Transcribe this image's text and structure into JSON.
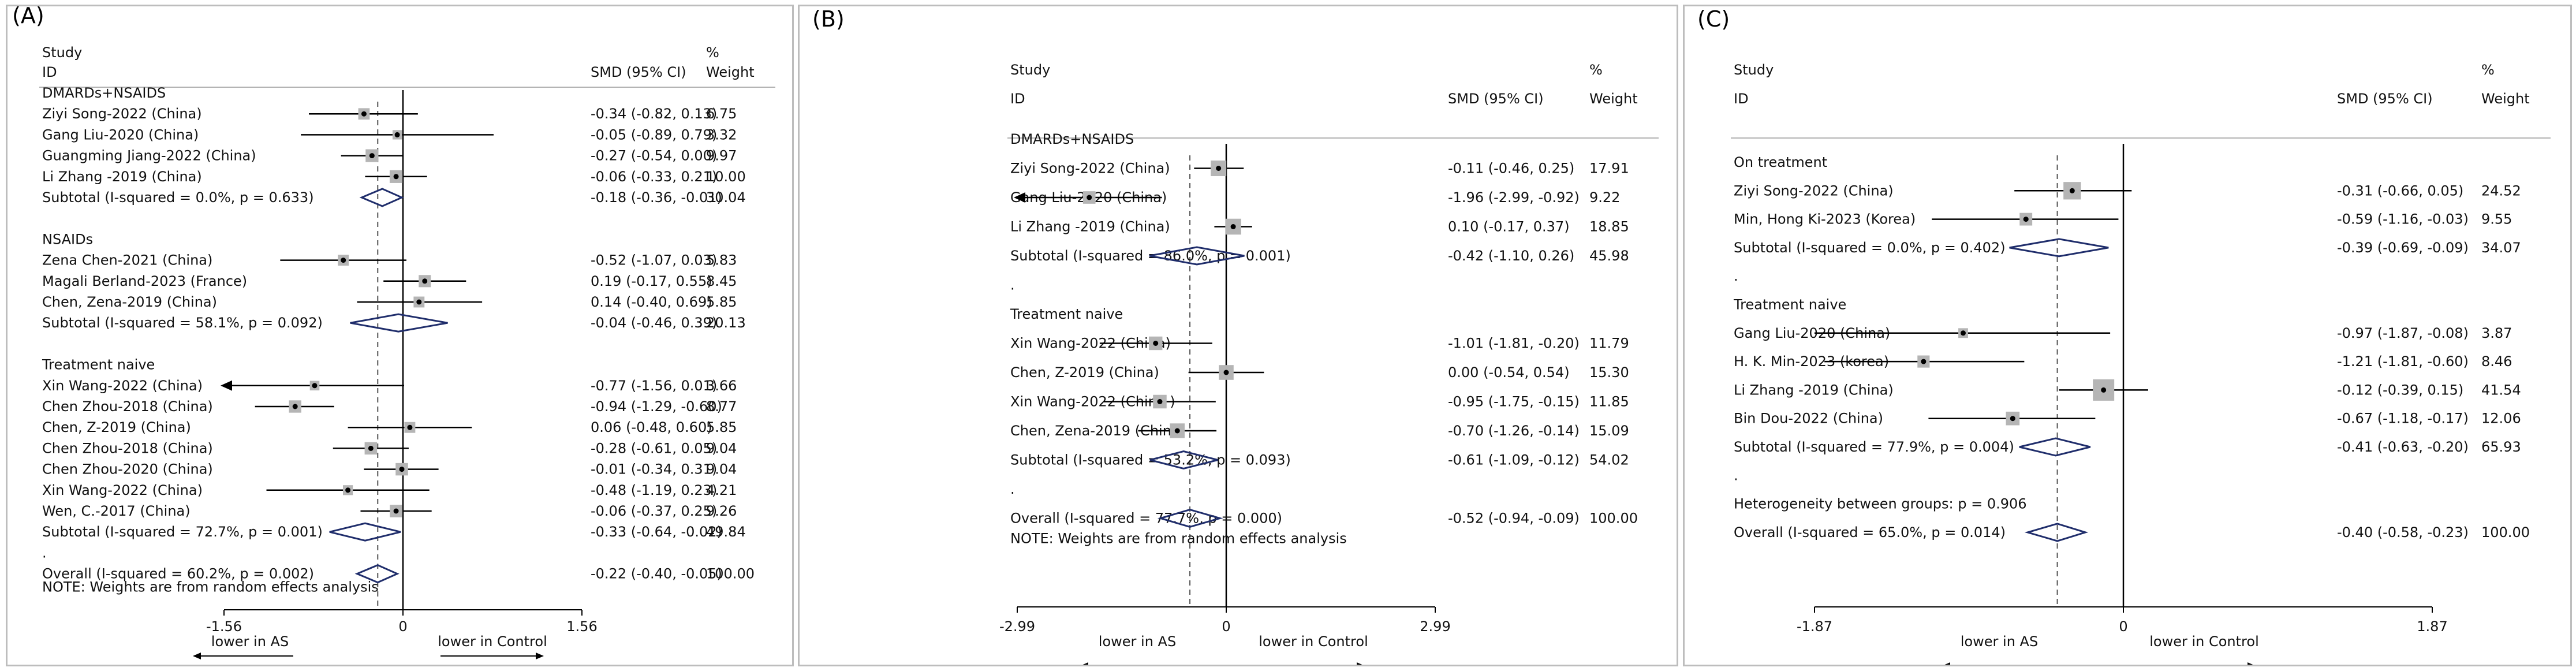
{
  "chart_data": [
    {
      "type": "forest",
      "panel_label": "(A)",
      "header": {
        "study": "Study",
        "id": "ID",
        "smd": "SMD (95% CI)",
        "pct": "%",
        "weight": "Weight"
      },
      "xlim": [
        -1.56,
        1.56
      ],
      "ticks": [
        "-1.56",
        "0",
        "1.56"
      ],
      "overall_effect": -0.22,
      "lower_label": "lower in AS",
      "control_label": "lower in Control",
      "note": "NOTE: Weights are from random effects analysis",
      "rows": [
        {
          "kind": "group",
          "label": "DMARDs+NSAIDS"
        },
        {
          "kind": "study",
          "label": "Ziyi Song-2022 (China)",
          "est": -0.34,
          "lo": -0.82,
          "hi": 0.13,
          "ci_text": "-0.34 (-0.82, 0.13)",
          "weight": "6.75"
        },
        {
          "kind": "study",
          "label": "Gang Liu-2020 (China)",
          "est": -0.05,
          "lo": -0.89,
          "hi": 0.79,
          "ci_text": "-0.05 (-0.89, 0.79)",
          "weight": "3.32"
        },
        {
          "kind": "study",
          "label": "Guangming Jiang-2022 (China)",
          "est": -0.27,
          "lo": -0.54,
          "hi": 0.0,
          "ci_text": "-0.27 (-0.54, 0.00)",
          "weight": "9.97"
        },
        {
          "kind": "study",
          "label": "Li Zhang -2019 (China)",
          "est": -0.06,
          "lo": -0.33,
          "hi": 0.21,
          "ci_text": "-0.06 (-0.33, 0.21)",
          "weight": "10.00"
        },
        {
          "kind": "subtotal",
          "label": "Subtotal  (I-squared = 0.0%, p = 0.633)",
          "est": -0.18,
          "lo": -0.36,
          "hi": -0.01,
          "ci_text": "-0.18 (-0.36, -0.01)",
          "weight": "30.04"
        },
        {
          "kind": "spacer"
        },
        {
          "kind": "group",
          "label": "NSAIDs"
        },
        {
          "kind": "study",
          "label": "Zena Chen-2021 (China)",
          "est": -0.52,
          "lo": -1.07,
          "hi": 0.03,
          "ci_text": "-0.52 (-1.07, 0.03)",
          "weight": "5.83"
        },
        {
          "kind": "study",
          "label": "Magali Berland-2023 (France)",
          "est": 0.19,
          "lo": -0.17,
          "hi": 0.55,
          "ci_text": "0.19 (-0.17, 0.55)",
          "weight": "8.45"
        },
        {
          "kind": "study",
          "label": "Chen, Zena-2019 (China)",
          "est": 0.14,
          "lo": -0.4,
          "hi": 0.69,
          "ci_text": "0.14 (-0.40, 0.69)",
          "weight": "5.85"
        },
        {
          "kind": "subtotal",
          "label": "Subtotal  (I-squared = 58.1%, p = 0.092)",
          "est": -0.04,
          "lo": -0.46,
          "hi": 0.39,
          "ci_text": "-0.04 (-0.46, 0.39)",
          "weight": "20.13"
        },
        {
          "kind": "spacer"
        },
        {
          "kind": "group",
          "label": "Treatment naive"
        },
        {
          "kind": "study",
          "label": "Xin Wang-2022 (China)",
          "est": -0.77,
          "lo": -1.56,
          "hi": 0.01,
          "ci_text": "-0.77 (-1.56, 0.01)",
          "weight": "3.66",
          "arrow_left": true
        },
        {
          "kind": "study",
          "label": "Chen Zhou-2018 (China)",
          "est": -0.94,
          "lo": -1.29,
          "hi": -0.6,
          "ci_text": "-0.94 (-1.29, -0.60)",
          "weight": "8.77"
        },
        {
          "kind": "study",
          "label": "Chen, Z-2019 (China)",
          "est": 0.06,
          "lo": -0.48,
          "hi": 0.6,
          "ci_text": "0.06 (-0.48, 0.60)",
          "weight": "5.85"
        },
        {
          "kind": "study",
          "label": "Chen Zhou-2018 (China)",
          "est": -0.28,
          "lo": -0.61,
          "hi": 0.05,
          "ci_text": "-0.28 (-0.61, 0.05)",
          "weight": "9.04"
        },
        {
          "kind": "study",
          "label": "Chen Zhou-2020 (China)",
          "est": -0.01,
          "lo": -0.34,
          "hi": 0.31,
          "ci_text": "-0.01 (-0.34, 0.31)",
          "weight": "9.04"
        },
        {
          "kind": "study",
          "label": "Xin Wang-2022 (China)",
          "est": -0.48,
          "lo": -1.19,
          "hi": 0.23,
          "ci_text": "-0.48 (-1.19, 0.23)",
          "weight": "4.21"
        },
        {
          "kind": "study",
          "label": "Wen, C.-2017 (China)",
          "est": -0.06,
          "lo": -0.37,
          "hi": 0.25,
          "ci_text": "-0.06 (-0.37, 0.25)",
          "weight": "9.26"
        },
        {
          "kind": "subtotal",
          "label": "Subtotal  (I-squared = 72.7%, p = 0.001)",
          "est": -0.33,
          "lo": -0.64,
          "hi": -0.02,
          "ci_text": "-0.33 (-0.64, -0.02)",
          "weight": "49.84"
        },
        {
          "kind": "dot",
          "label": "."
        },
        {
          "kind": "overall",
          "label": "Overall  (I-squared = 60.2%, p = 0.002)",
          "est": -0.22,
          "lo": -0.4,
          "hi": -0.05,
          "ci_text": "-0.22 (-0.40, -0.05)",
          "weight": "100.00"
        }
      ]
    },
    {
      "type": "forest",
      "panel_label": "(B)",
      "header": {
        "study": "Study",
        "id": "ID",
        "smd": "SMD (95% CI)",
        "pct": "%",
        "weight": "Weight"
      },
      "xlim": [
        -2.99,
        2.99
      ],
      "ticks": [
        "-2.99",
        "0",
        "2.99"
      ],
      "overall_effect": -0.52,
      "lower_label": "lower in AS",
      "control_label": "lower in Control",
      "note": "NOTE: Weights are from random effects analysis",
      "rows": [
        {
          "kind": "group",
          "label": "DMARDs+NSAIDS"
        },
        {
          "kind": "study",
          "label": "Ziyi Song-2022 (China)",
          "est": -0.11,
          "lo": -0.46,
          "hi": 0.25,
          "ci_text": "-0.11 (-0.46, 0.25)",
          "weight": "17.91"
        },
        {
          "kind": "study",
          "label": "Gang Liu-2020 (China)",
          "est": -1.96,
          "lo": -2.99,
          "hi": -0.92,
          "ci_text": "-1.96 (-2.99, -0.92)",
          "weight": "9.22",
          "arrow_left": true
        },
        {
          "kind": "study",
          "label": "Li Zhang -2019 (China)",
          "est": 0.1,
          "lo": -0.17,
          "hi": 0.37,
          "ci_text": "0.10 (-0.17, 0.37)",
          "weight": "18.85"
        },
        {
          "kind": "subtotal",
          "label": "Subtotal  (I-squared = 86.0%, p = 0.001)",
          "est": -0.42,
          "lo": -1.1,
          "hi": 0.26,
          "ci_text": "-0.42 (-1.10, 0.26)",
          "weight": "45.98"
        },
        {
          "kind": "dot",
          "label": "."
        },
        {
          "kind": "group",
          "label": "Treatment naive"
        },
        {
          "kind": "study",
          "label": "Xin Wang-2022 (China)",
          "est": -1.01,
          "lo": -1.81,
          "hi": -0.2,
          "ci_text": "-1.01 (-1.81, -0.20)",
          "weight": "11.79"
        },
        {
          "kind": "study",
          "label": "Chen, Z-2019 (China)",
          "est": 0.0,
          "lo": -0.54,
          "hi": 0.54,
          "ci_text": "0.00 (-0.54, 0.54)",
          "weight": "15.30"
        },
        {
          "kind": "study",
          "label": "Xin Wang-2022 (China )",
          "est": -0.95,
          "lo": -1.75,
          "hi": -0.15,
          "ci_text": "-0.95 (-1.75, -0.15)",
          "weight": "11.85"
        },
        {
          "kind": "study",
          "label": "Chen, Zena-2019 (China)",
          "est": -0.7,
          "lo": -1.26,
          "hi": -0.14,
          "ci_text": "-0.70 (-1.26, -0.14)",
          "weight": "15.09"
        },
        {
          "kind": "subtotal",
          "label": "Subtotal  (I-squared = 53.2%, p = 0.093)",
          "est": -0.61,
          "lo": -1.09,
          "hi": -0.12,
          "ci_text": "-0.61 (-1.09, -0.12)",
          "weight": "54.02"
        },
        {
          "kind": "dot",
          "label": "."
        },
        {
          "kind": "overall",
          "label": "Overall  (I-squared = 77.7%, p = 0.000)",
          "est": -0.52,
          "lo": -0.94,
          "hi": -0.09,
          "ci_text": "-0.52 (-0.94, -0.09)",
          "weight": "100.00"
        }
      ]
    },
    {
      "type": "forest",
      "panel_label": "(C)",
      "header": {
        "study": "Study",
        "id": "ID",
        "smd": "SMD (95% CI)",
        "pct": "%",
        "weight": "Weight"
      },
      "xlim": [
        -1.87,
        1.87
      ],
      "ticks": [
        "-1.87",
        "0",
        "1.87"
      ],
      "overall_effect": -0.4,
      "lower_label": "lower in AS",
      "control_label": "lower in Control",
      "note": "",
      "rows": [
        {
          "kind": "group",
          "label": "On treatment"
        },
        {
          "kind": "study",
          "label": "Ziyi Song-2022 (China)",
          "est": -0.31,
          "lo": -0.66,
          "hi": 0.05,
          "ci_text": "-0.31 (-0.66, 0.05)",
          "weight": "24.52"
        },
        {
          "kind": "study",
          "label": "Min, Hong Ki-2023 (Korea)",
          "est": -0.59,
          "lo": -1.16,
          "hi": -0.03,
          "ci_text": "-0.59 (-1.16, -0.03)",
          "weight": "9.55"
        },
        {
          "kind": "subtotal",
          "label": "Subtotal  (I-squared = 0.0%, p = 0.402)",
          "est": -0.39,
          "lo": -0.69,
          "hi": -0.09,
          "ci_text": "-0.39 (-0.69, -0.09)",
          "weight": "34.07"
        },
        {
          "kind": "dot",
          "label": "."
        },
        {
          "kind": "group",
          "label": "Treatment naive"
        },
        {
          "kind": "study",
          "label": "Gang Liu-2020 (China)",
          "est": -0.97,
          "lo": -1.87,
          "hi": -0.08,
          "ci_text": "-0.97 (-1.87, -0.08)",
          "weight": "3.87"
        },
        {
          "kind": "study",
          "label": "H. K. Min-2023 (korea)",
          "est": -1.21,
          "lo": -1.81,
          "hi": -0.6,
          "ci_text": "-1.21 (-1.81, -0.60)",
          "weight": "8.46"
        },
        {
          "kind": "study",
          "label": "Li Zhang -2019 (China)",
          "est": -0.12,
          "lo": -0.39,
          "hi": 0.15,
          "ci_text": "-0.12 (-0.39, 0.15)",
          "weight": "41.54"
        },
        {
          "kind": "study",
          "label": "Bin Dou-2022 (China)",
          "est": -0.67,
          "lo": -1.18,
          "hi": -0.17,
          "ci_text": "-0.67 (-1.18, -0.17)",
          "weight": "12.06"
        },
        {
          "kind": "subtotal",
          "label": "Subtotal  (I-squared = 77.9%, p = 0.004)",
          "est": -0.41,
          "lo": -0.63,
          "hi": -0.2,
          "ci_text": "-0.41 (-0.63, -0.20)",
          "weight": "65.93"
        },
        {
          "kind": "dot",
          "label": "."
        },
        {
          "kind": "text",
          "label": "Heterogeneity between groups: p = 0.906"
        },
        {
          "kind": "overall",
          "label": "Overall  (I-squared = 65.0%, p = 0.014)",
          "est": -0.4,
          "lo": -0.58,
          "hi": -0.23,
          "ci_text": "-0.40 (-0.58, -0.23)",
          "weight": "100.00"
        }
      ]
    }
  ]
}
